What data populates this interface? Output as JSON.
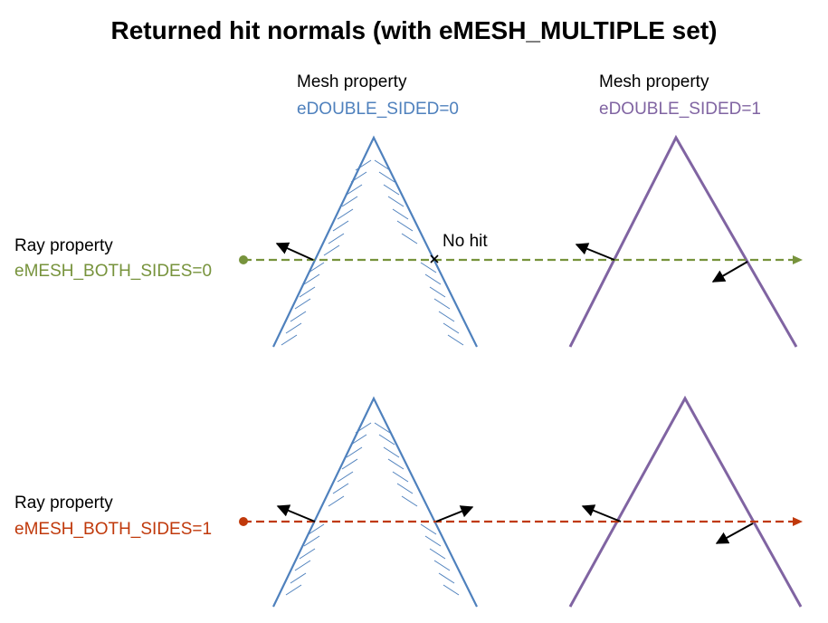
{
  "title": "Returned hit normals (with eMESH_MULTIPLE set)",
  "mesh_headers": [
    {
      "label": "Mesh property",
      "value": "eDOUBLE_SIDED=0"
    },
    {
      "label": "Mesh property",
      "value": "eDOUBLE_SIDED=1"
    }
  ],
  "ray_headers": [
    {
      "label": "Ray property",
      "value": "eMESH_BOTH_SIDES=0"
    },
    {
      "label": "Ray property",
      "value": "eMESH_BOTH_SIDES=1"
    }
  ],
  "no_hit_label": "No hit",
  "miss_marker": "x",
  "colors": {
    "mesh_single_sided": "#4f81bd",
    "mesh_double_sided": "#8064a2",
    "ray_row1": "#77933c",
    "ray_row2": "#c0390b",
    "normal_arrow": "#000000"
  },
  "icons": [
    "ray-arrowhead",
    "ray-origin-dot",
    "normal-arrow",
    "hatch-marks"
  ]
}
